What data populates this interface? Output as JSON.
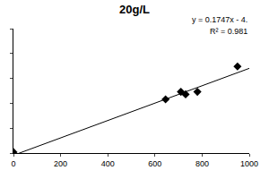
{
  "chart_data": {
    "type": "scatter",
    "title": "20g/L",
    "x": [
      0,
      645,
      710,
      730,
      780,
      950
    ],
    "values": [
      2,
      108,
      123,
      118,
      123,
      174
    ],
    "color": "#000000",
    "marker": "diamond",
    "trendline": {
      "slope": 0.1747,
      "intercept": -4.5,
      "color": "#000000"
    },
    "annotations": [
      "y = 0.1747x - 4.",
      "R² = 0.981"
    ],
    "xlim": [
      0,
      1000
    ],
    "xticks": [
      0,
      200,
      400,
      600,
      800,
      1000
    ],
    "ylim": [
      0,
      250
    ],
    "yticks": [
      0,
      50,
      100,
      150,
      200,
      250
    ],
    "grid": false,
    "tick_labels": "x"
  }
}
